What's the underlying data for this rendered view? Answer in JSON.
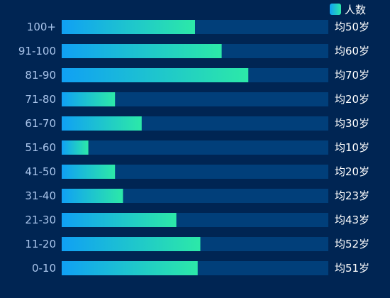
{
  "chart_data": {
    "type": "bar",
    "orientation": "horizontal",
    "legend": {
      "entries": [
        "人数"
      ],
      "placement": "top-right"
    },
    "series": [
      {
        "name": "人数"
      }
    ],
    "categories": [
      "100+",
      "91-100",
      "81-90",
      "71-80",
      "61-70",
      "51-60",
      "41-50",
      "31-40",
      "21-30",
      "11-20",
      "0-10"
    ],
    "values": [
      50,
      60,
      70,
      20,
      30,
      10,
      20,
      23,
      43,
      52,
      51
    ],
    "data_labels": [
      "均50岁",
      "均60岁",
      "均70岁",
      "均20岁",
      "均30岁",
      "均10岁",
      "均20岁",
      "均23岁",
      "均43岁",
      "均52岁",
      "均51岁"
    ],
    "xlim": [
      0,
      100
    ],
    "grid": false,
    "colors": {
      "background": "#002553",
      "track": "#013f7a",
      "bar_start": "#10a0f4",
      "bar_end": "#2ce9a8",
      "tick_text": "#a9c4ea",
      "label_text": "#ffffff"
    }
  }
}
